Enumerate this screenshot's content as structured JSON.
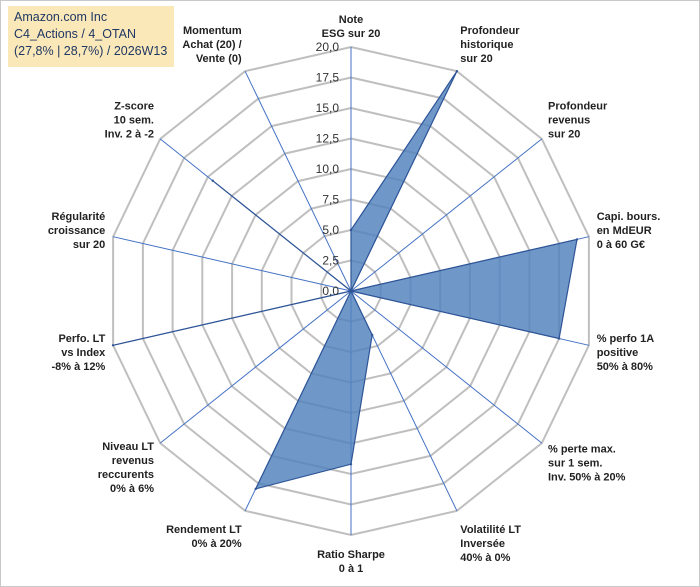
{
  "info": {
    "line1": "Amazon.com Inc",
    "line2": "C4_Actions / 4_OTAN",
    "line3": "(27,8% | 28,7%) / 2026W13"
  },
  "colors": {
    "fill": "#4f81bd",
    "stroke": "#2f5597",
    "grid": "#bfbfbf",
    "spoke": "#4472c4",
    "info_bg": "#fbe8b8",
    "info_text": "#1f3864"
  },
  "chart_data": {
    "type": "radar",
    "rmin": 0,
    "rmax": 20,
    "tick_labels": [
      "0,0",
      "2,5",
      "5,0",
      "7,5",
      "10,0",
      "12,5",
      "15,0",
      "17,5",
      "20,0"
    ],
    "axes": [
      [
        "Note",
        "ESG sur 20"
      ],
      [
        "Profondeur",
        "historique",
        "sur 20"
      ],
      [
        "Profondeur",
        "revenus",
        "sur 20"
      ],
      [
        "Capi. bours.",
        "en MdEUR",
        "0 à 60 G€"
      ],
      [
        "% perfo 1A",
        "positive",
        "50% à 80%"
      ],
      [
        "% perte max.",
        "sur 1 sem.",
        "Inv. 50% à 20%"
      ],
      [
        "Volatilité LT",
        "Inversée",
        "40% à 0%"
      ],
      [
        "Ratio Sharpe",
        "0 à 1"
      ],
      [
        "Rendement LT",
        "0% à 20%"
      ],
      [
        "Niveau LT",
        "revenus",
        "reccurents",
        "0% à 6%"
      ],
      [
        "Perfo. LT",
        "vs Index",
        "-8% à 12%"
      ],
      [
        "Régularité",
        "croissance",
        "sur 20"
      ],
      [
        "Z-score",
        "10 sem.",
        "Inv. 2 à -2"
      ],
      [
        "Momentum",
        "Achat (20) /",
        "Vente (0)"
      ]
    ],
    "values": [
      5.0,
      20.0,
      0.0,
      19.0,
      17.5,
      0.0,
      4.0,
      14.2,
      18.0,
      0.0,
      20.0,
      0.0,
      14.5,
      0.0
    ]
  }
}
